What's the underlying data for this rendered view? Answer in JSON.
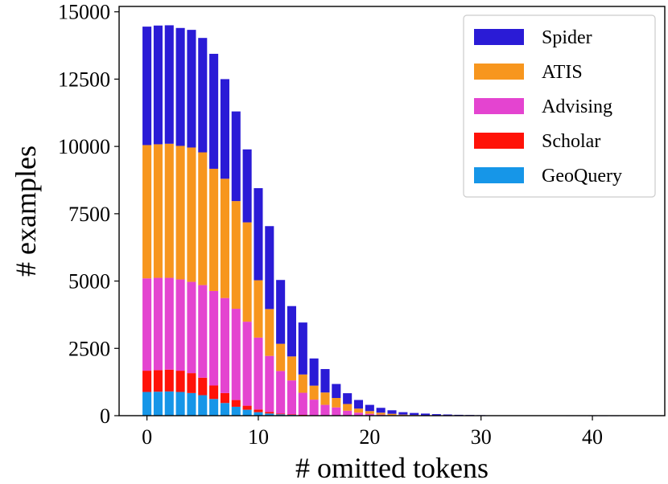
{
  "chart_data": {
    "type": "bar",
    "stacked": true,
    "xlabel": "# omitted tokens",
    "ylabel": "# examples",
    "xlim": [
      -2.5,
      46.5
    ],
    "ylim": [
      0,
      15200
    ],
    "xticks": [
      0,
      10,
      20,
      30,
      40
    ],
    "yticks": [
      0,
      2500,
      5000,
      7500,
      10000,
      12500,
      15000
    ],
    "grid": false,
    "legend_position": "top-right",
    "legend_order": [
      "Spider",
      "ATIS",
      "Advising",
      "Scholar",
      "GeoQuery"
    ],
    "x": [
      0,
      1,
      2,
      3,
      4,
      5,
      6,
      7,
      8,
      9,
      10,
      11,
      12,
      13,
      14,
      15,
      16,
      17,
      18,
      19,
      20,
      21,
      22,
      23,
      24,
      25,
      26,
      27,
      28,
      29,
      30,
      31,
      32,
      33,
      34,
      35,
      36,
      37,
      38,
      39,
      40,
      41,
      42,
      43,
      44,
      45
    ],
    "series": [
      {
        "name": "GeoQuery",
        "color": "#1696e8",
        "values": [
          880,
          890,
          900,
          880,
          840,
          760,
          620,
          470,
          330,
          220,
          130,
          80,
          50,
          30,
          20,
          10,
          8,
          5,
          3,
          2,
          1,
          1,
          0,
          0,
          0,
          0,
          0,
          0,
          0,
          0,
          0,
          0,
          0,
          0,
          0,
          0,
          0,
          0,
          0,
          0,
          0,
          0,
          0,
          0,
          0,
          0
        ]
      },
      {
        "name": "Scholar",
        "color": "#ff1208",
        "values": [
          790,
          800,
          810,
          790,
          740,
          650,
          500,
          370,
          250,
          150,
          100,
          60,
          30,
          20,
          10,
          5,
          3,
          2,
          1,
          1,
          0,
          0,
          0,
          0,
          0,
          0,
          0,
          0,
          0,
          0,
          0,
          0,
          0,
          0,
          0,
          0,
          0,
          0,
          0,
          0,
          0,
          0,
          0,
          0,
          0,
          0
        ]
      },
      {
        "name": "Advising",
        "color": "#e444d0",
        "values": [
          3430,
          3430,
          3410,
          3390,
          3390,
          3440,
          3510,
          3530,
          3390,
          3120,
          2670,
          2080,
          1580,
          1260,
          820,
          580,
          390,
          300,
          180,
          110,
          70,
          40,
          20,
          10,
          5,
          3,
          2,
          1,
          0,
          0,
          0,
          0,
          0,
          0,
          0,
          0,
          0,
          0,
          0,
          0,
          0,
          0,
          0,
          0,
          0,
          0
        ]
      },
      {
        "name": "ATIS",
        "color": "#f7961e",
        "values": [
          4950,
          4960,
          4980,
          4960,
          4990,
          4930,
          4540,
          4430,
          4000,
          3690,
          2130,
          1740,
          1010,
          890,
          680,
          520,
          460,
          350,
          250,
          150,
          100,
          70,
          50,
          30,
          20,
          10,
          5,
          3,
          2,
          1,
          0,
          0,
          0,
          0,
          0,
          0,
          0,
          0,
          0,
          0,
          0,
          0,
          0,
          0,
          0,
          0
        ]
      },
      {
        "name": "Spider",
        "color": "#2a1bd6",
        "values": [
          4400,
          4410,
          4400,
          4380,
          4370,
          4250,
          4270,
          3700,
          3330,
          2710,
          3420,
          3080,
          2370,
          1870,
          1930,
          1010,
          870,
          520,
          400,
          320,
          230,
          180,
          130,
          90,
          75,
          65,
          50,
          40,
          30,
          25,
          20,
          15,
          10,
          8,
          6,
          5,
          4,
          3,
          2,
          2,
          1,
          1,
          1,
          0,
          0,
          0
        ]
      }
    ]
  }
}
